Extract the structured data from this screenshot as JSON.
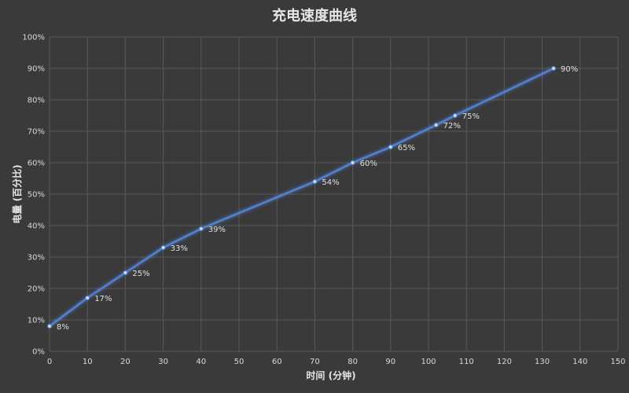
{
  "chart_data": {
    "type": "line",
    "title": "充电速度曲线",
    "xlabel": "时间 (分钟)",
    "ylabel": "电量 (百分比)",
    "xlim": [
      0,
      150
    ],
    "ylim": [
      0,
      100
    ],
    "x_ticks": [
      "0",
      "10",
      "20",
      "30",
      "40",
      "50",
      "60",
      "70",
      "80",
      "90",
      "100",
      "110",
      "120",
      "130",
      "140",
      "150"
    ],
    "y_ticks": [
      "0%",
      "10%",
      "20%",
      "30%",
      "40%",
      "50%",
      "60%",
      "70%",
      "80%",
      "90%",
      "100%"
    ],
    "grid": true,
    "series": [
      {
        "x": [
          0,
          10,
          20,
          30,
          40,
          70,
          80,
          90,
          102,
          107,
          133
        ],
        "values": [
          8,
          17,
          25,
          33,
          39,
          54,
          60,
          65,
          72,
          75,
          90
        ],
        "labels": [
          "8%",
          "17%",
          "25%",
          "33%",
          "39%",
          "54%",
          "60%",
          "65%",
          "72%",
          "75%",
          "90%"
        ]
      }
    ],
    "line_color": "#4f83d6",
    "background_color": "#3a3a3a"
  }
}
